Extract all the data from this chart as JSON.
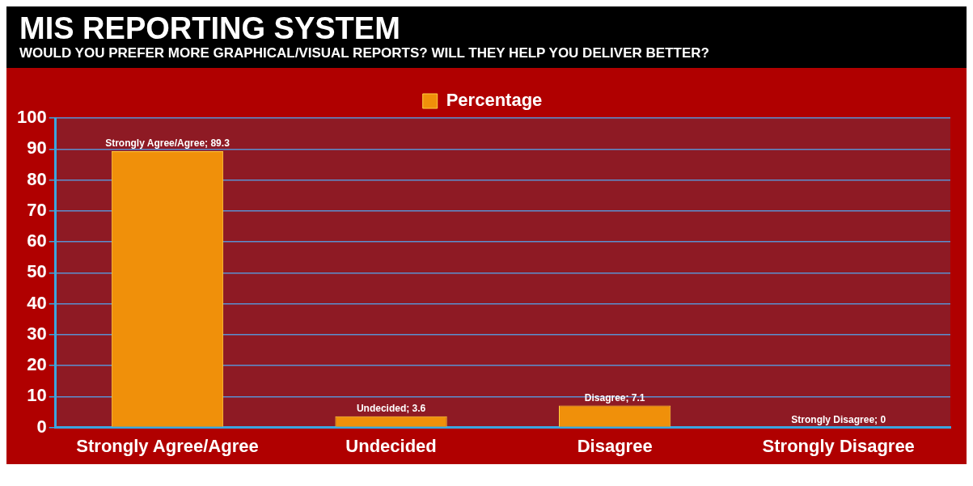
{
  "chart_data": {
    "type": "bar",
    "title": "MIS REPORTING SYSTEM",
    "subtitle": "WOULD YOU PREFER MORE GRAPHICAL/VISUAL REPORTS? WILL THEY HELP YOU DELIVER BETTER?",
    "categories": [
      "Strongly Agree/Agree",
      "Undecided",
      "Disagree",
      "Strongly Disagree"
    ],
    "series": [
      {
        "name": "Percentage",
        "color": "#f0900a",
        "values": [
          89.3,
          3.6,
          7.1,
          0
        ],
        "value_labels": [
          "Strongly Agree/Agree; 89.3",
          "Undecided; 3.6",
          "Disagree; 7.1",
          "Strongly Disagree; 0"
        ]
      }
    ],
    "ylim": [
      0,
      100
    ],
    "yticks": [
      0,
      10,
      20,
      30,
      40,
      50,
      60,
      70,
      80,
      90,
      100
    ],
    "grid": "y",
    "legend": "top"
  }
}
